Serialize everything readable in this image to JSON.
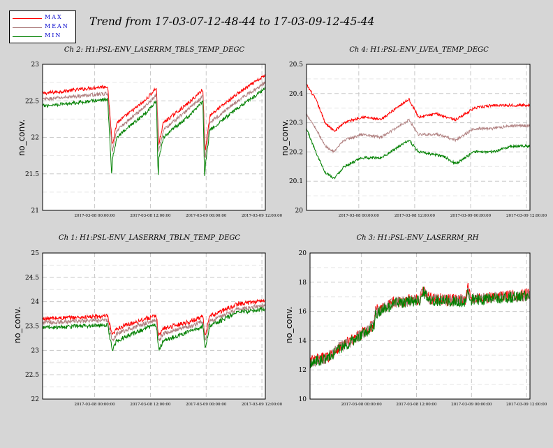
{
  "title": "Trend from 17-03-07-12-48-44 to 17-03-09-12-45-44",
  "legend": [
    {
      "name": "MAX",
      "color": "#ff0000"
    },
    {
      "name": "MEAN",
      "color": "#b08080"
    },
    {
      "name": "MIN",
      "color": "#008000"
    }
  ],
  "x_ticks": [
    "2017-03-08 00:00:00",
    "2017-03-08 12:00:00",
    "2017-03-09 00:00:00",
    "2017-03-09 12:00:00"
  ],
  "chart_data": [
    {
      "type": "line",
      "title": "Ch 2: H1:PSL-ENV_LASERRM_TBLS_TEMP_DEGC",
      "ylabel": "no_conv.",
      "xlabel": "",
      "xlim": [
        "2017-03-07 12:48:44",
        "2017-03-09 12:45:44"
      ],
      "ylim": [
        21,
        23
      ],
      "y_ticks": [
        "21",
        "21.5",
        "22",
        "22.5",
        "23"
      ],
      "grid": true,
      "series": [
        {
          "name": "MAX",
          "x": [
            0,
            14,
            15,
            16,
            22,
            24.5,
            25,
            26,
            32,
            34.5,
            35,
            36,
            42,
            47.95
          ],
          "y": [
            22.6,
            22.7,
            21.9,
            22.2,
            22.5,
            22.68,
            21.9,
            22.2,
            22.5,
            22.66,
            21.8,
            22.3,
            22.6,
            22.85
          ]
        },
        {
          "name": "MEAN",
          "x": [
            0,
            14,
            15,
            16,
            22,
            24.5,
            25,
            26,
            32,
            34.5,
            35,
            36,
            42,
            47.95
          ],
          "y": [
            22.52,
            22.6,
            21.8,
            22.1,
            22.42,
            22.58,
            21.8,
            22.1,
            22.42,
            22.56,
            21.7,
            22.2,
            22.5,
            22.75
          ]
        },
        {
          "name": "MIN",
          "x": [
            0,
            14,
            14.9,
            15,
            16,
            22,
            24.5,
            24.9,
            25,
            26,
            32,
            34.5,
            34.9,
            35,
            36,
            42,
            47.95
          ],
          "y": [
            22.43,
            22.52,
            21.47,
            21.7,
            22.0,
            22.32,
            22.5,
            21.42,
            21.7,
            22.0,
            22.32,
            22.5,
            21.42,
            21.6,
            22.1,
            22.4,
            22.67
          ]
        }
      ]
    },
    {
      "type": "line",
      "title": "Ch 4: H1:PSL-ENV_LVEA_TEMP_DEGC",
      "ylabel": "no_conv.",
      "xlabel": "",
      "xlim": [
        "2017-03-07 12:48:44",
        "2017-03-09 12:45:44"
      ],
      "ylim": [
        20,
        20.5
      ],
      "y_ticks": [
        "20",
        "20.1",
        "20.2",
        "20.3",
        "20.4",
        "20.5"
      ],
      "grid": true,
      "series": [
        {
          "name": "MAX",
          "x": [
            0,
            2,
            4,
            6,
            8,
            12,
            16,
            20,
            22,
            24,
            28,
            30,
            32,
            36,
            40,
            44,
            47.95
          ],
          "y": [
            20.43,
            20.38,
            20.3,
            20.27,
            20.3,
            20.32,
            20.31,
            20.36,
            20.38,
            20.32,
            20.33,
            20.32,
            20.31,
            20.35,
            20.36,
            20.36,
            20.36
          ]
        },
        {
          "name": "MEAN",
          "x": [
            0,
            2,
            4,
            6,
            8,
            12,
            16,
            20,
            22,
            24,
            28,
            30,
            32,
            36,
            40,
            44,
            47.95
          ],
          "y": [
            20.33,
            20.28,
            20.22,
            20.2,
            20.24,
            20.26,
            20.25,
            20.29,
            20.31,
            20.26,
            20.26,
            20.25,
            20.24,
            20.28,
            20.28,
            20.29,
            20.29
          ]
        },
        {
          "name": "MIN",
          "x": [
            0,
            2,
            4,
            6,
            8,
            12,
            16,
            20,
            22,
            24,
            28,
            30,
            32,
            36,
            40,
            44,
            47.95
          ],
          "y": [
            20.28,
            20.2,
            20.13,
            20.11,
            20.15,
            20.18,
            20.18,
            20.22,
            20.24,
            20.2,
            20.19,
            20.18,
            20.16,
            20.2,
            20.2,
            20.22,
            20.22
          ]
        }
      ]
    },
    {
      "type": "line",
      "title": "Ch 1: H1:PSL-ENV_LASERRM_TBLN_TEMP_DEGC",
      "ylabel": "no_conv.",
      "xlabel": "",
      "xlim": [
        "2017-03-07 12:48:44",
        "2017-03-09 12:45:44"
      ],
      "ylim": [
        22,
        25
      ],
      "y_ticks": [
        "22",
        "22.5",
        "23",
        "23.5",
        "24",
        "24.5",
        "25"
      ],
      "grid": true,
      "series": [
        {
          "name": "MAX",
          "x": [
            0,
            14,
            15,
            16,
            22,
            24.5,
            25,
            26,
            32,
            34.5,
            35,
            36,
            42,
            47.95
          ],
          "y": [
            23.65,
            23.7,
            23.3,
            23.45,
            23.65,
            23.7,
            23.3,
            23.45,
            23.6,
            23.7,
            23.3,
            23.7,
            23.95,
            24.03
          ]
        },
        {
          "name": "MEAN",
          "x": [
            0,
            14,
            15,
            16,
            22,
            24.5,
            25,
            26,
            32,
            34.5,
            35,
            36,
            42,
            47.95
          ],
          "y": [
            23.57,
            23.62,
            23.2,
            23.35,
            23.55,
            23.62,
            23.2,
            23.35,
            23.5,
            23.6,
            23.2,
            23.6,
            23.85,
            23.93
          ]
        },
        {
          "name": "MIN",
          "x": [
            0,
            14,
            15,
            16,
            22,
            24.5,
            25,
            26,
            32,
            34.5,
            35,
            36,
            42,
            47.95
          ],
          "y": [
            23.47,
            23.52,
            23.0,
            23.2,
            23.45,
            23.52,
            23.0,
            23.2,
            23.4,
            23.5,
            23.05,
            23.5,
            23.78,
            23.85
          ]
        }
      ]
    },
    {
      "type": "line",
      "title": "Ch 3: H1:PSL-ENV_LASERRM_RH",
      "ylabel": "no_conv.",
      "xlabel": "",
      "xlim": [
        "2017-03-07 12:48:44",
        "2017-03-09 12:45:44"
      ],
      "ylim": [
        10,
        20
      ],
      "y_ticks": [
        "10",
        "12",
        "14",
        "16",
        "18",
        "20"
      ],
      "grid": true,
      "series": [
        {
          "name": "MAX",
          "x": [
            0,
            4,
            6,
            10,
            14,
            14.2,
            15,
            18,
            22,
            24,
            24.5,
            26,
            30,
            34,
            34.4,
            35,
            40,
            47.95
          ],
          "y": [
            12.6,
            12.9,
            13.5,
            14.2,
            15.1,
            16.1,
            16.1,
            16.6,
            16.8,
            16.8,
            17.6,
            16.9,
            16.8,
            16.8,
            17.6,
            16.9,
            17.0,
            17.2
          ]
        },
        {
          "name": "MEAN",
          "x": [
            0,
            4,
            6,
            10,
            14,
            14.2,
            15,
            18,
            22,
            24,
            24.5,
            26,
            30,
            34,
            34.4,
            35,
            40,
            47.95
          ],
          "y": [
            12.55,
            12.85,
            13.45,
            14.15,
            15.05,
            16.0,
            16.0,
            16.55,
            16.75,
            16.75,
            17.5,
            16.85,
            16.75,
            16.75,
            17.5,
            16.85,
            16.95,
            17.1
          ]
        },
        {
          "name": "MIN",
          "x": [
            0,
            4,
            6,
            10,
            14,
            14.2,
            15,
            18,
            22,
            24,
            24.5,
            26,
            30,
            34,
            34.4,
            35,
            40,
            47.95
          ],
          "y": [
            12.5,
            12.8,
            13.4,
            14.1,
            15.0,
            15.9,
            15.95,
            16.5,
            16.7,
            16.7,
            17.4,
            16.8,
            16.7,
            16.7,
            17.4,
            16.8,
            16.9,
            17.05
          ]
        }
      ]
    }
  ]
}
